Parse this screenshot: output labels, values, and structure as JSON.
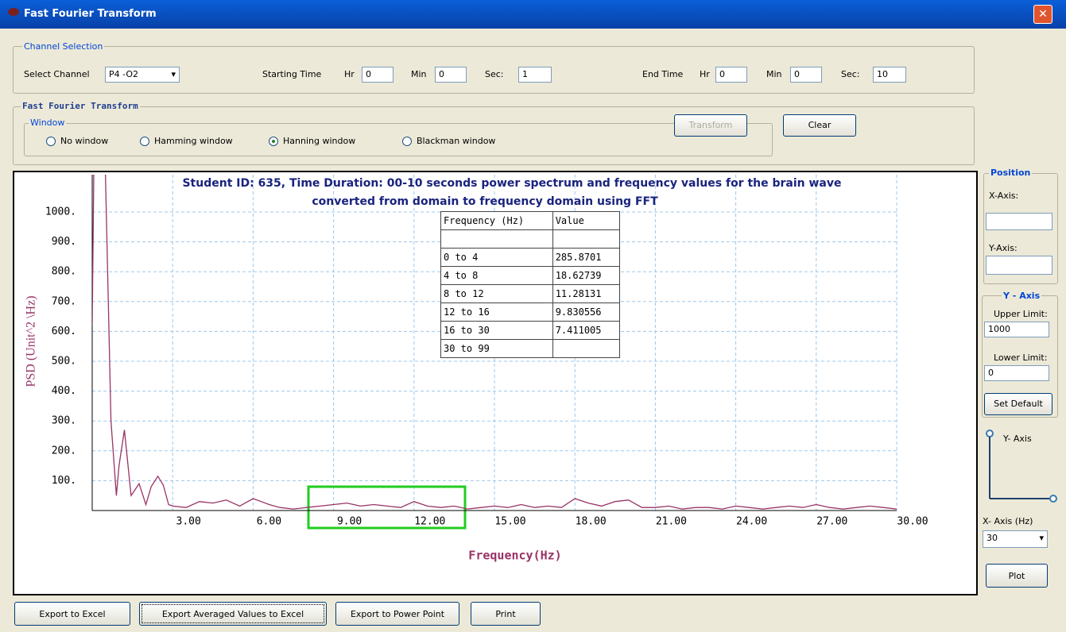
{
  "window": {
    "title": "Fast Fourier Transform"
  },
  "channel_selection": {
    "legend": "Channel Selection",
    "select_label": "Select Channel",
    "channel": "P4 -O2",
    "start": {
      "label": "Starting Time",
      "hr_label": "Hr",
      "hr": 0,
      "min_label": "Min",
      "min": 0,
      "sec_label": "Sec:",
      "sec": 1
    },
    "end": {
      "label": "End Time",
      "hr_label": "Hr",
      "hr": 0,
      "min_label": "Min",
      "min": 0,
      "sec_label": "Sec:",
      "sec": 10
    }
  },
  "fft": {
    "legend": "Fast Fourier Transform",
    "window_legend": "Window",
    "windows": [
      {
        "label": "No window",
        "checked": false
      },
      {
        "label": "Hamming window",
        "checked": false
      },
      {
        "label": "Hanning window",
        "checked": true
      },
      {
        "label": "Blackman window",
        "checked": false
      }
    ],
    "transform": {
      "label": "Transform",
      "disabled": true
    },
    "clear": "Clear"
  },
  "chart_data": {
    "type": "line",
    "title": [
      "Student ID: 635, Time Duration: 00-10 seconds power spectrum and frequency values for the brain wave",
      "converted from domain to frequency domain using FFT"
    ],
    "x_label": "Frequency(Hz)",
    "y_label": "PSD  (Unit^2 \\Hz)",
    "color": "#993366",
    "grid": true,
    "x": [
      0,
      0.1,
      0.4,
      0.7,
      0.9,
      1.0,
      1.2,
      1.45,
      1.75,
      2.0,
      2.2,
      2.45,
      2.65,
      2.85,
      3.0,
      3.5,
      4.0,
      4.5,
      5.0,
      5.5,
      6.0,
      6.3,
      6.6,
      7.0,
      7.5,
      8.0,
      8.5,
      9.0,
      9.5,
      10,
      10.5,
      11,
      11.5,
      12,
      12.5,
      13,
      13.5,
      14,
      14.5,
      15,
      15.5,
      16,
      16.5,
      17,
      17.5,
      18,
      18.5,
      19,
      19.5,
      20,
      20.5,
      21,
      21.5,
      22,
      22.5,
      23,
      23.5,
      24,
      24.5,
      25,
      25.5,
      26,
      26.5,
      27,
      27.5,
      28,
      28.5,
      29,
      29.5,
      30
    ],
    "values": [
      620,
      1500,
      1500,
      300,
      50,
      150,
      270,
      50,
      90,
      20,
      80,
      115,
      85,
      20,
      15,
      10,
      30,
      25,
      35,
      15,
      40,
      30,
      20,
      10,
      5,
      10,
      15,
      20,
      25,
      15,
      20,
      15,
      10,
      30,
      15,
      10,
      15,
      5,
      10,
      15,
      10,
      20,
      10,
      15,
      10,
      40,
      25,
      15,
      30,
      35,
      10,
      10,
      15,
      5,
      10,
      10,
      5,
      15,
      10,
      5,
      10,
      15,
      10,
      20,
      10,
      5,
      10,
      15,
      10,
      5
    ],
    "xlim": [
      0,
      30
    ],
    "ylim": [
      0,
      1125
    ],
    "xticks": [
      {
        "value": 3,
        "label": "3.00"
      },
      {
        "value": 6,
        "label": "6.00"
      },
      {
        "value": 9,
        "label": "9.00"
      },
      {
        "value": 12,
        "label": "12.00"
      },
      {
        "value": 15,
        "label": "15.00"
      },
      {
        "value": 18,
        "label": "18.00"
      },
      {
        "value": 21,
        "label": "21.00"
      },
      {
        "value": 24,
        "label": "24.00"
      },
      {
        "value": 27,
        "label": "27.00"
      },
      {
        "value": 30,
        "label": "30.00"
      }
    ],
    "yticks": [
      {
        "value": 100,
        "label": "100."
      },
      {
        "value": 200,
        "label": "200."
      },
      {
        "value": 300,
        "label": "300."
      },
      {
        "value": 400,
        "label": "400."
      },
      {
        "value": 500,
        "label": "500."
      },
      {
        "value": 600,
        "label": "600."
      },
      {
        "value": 700,
        "label": "700."
      },
      {
        "value": 800,
        "label": "800."
      },
      {
        "value": 900,
        "label": "900."
      },
      {
        "value": 1000,
        "label": "1000."
      }
    ]
  },
  "band_table": {
    "header": [
      "Frequency (Hz)",
      "Value"
    ],
    "rows": [
      {
        "range": "0 to 4",
        "value": 285.8701
      },
      {
        "range": "4 to 8",
        "value": 18.62739
      },
      {
        "range": "8 to 12",
        "value": 11.28131
      },
      {
        "range": "12 to 16",
        "value": 9.830556
      },
      {
        "range": "16 to 30",
        "value": 7.411005
      },
      {
        "range": "30 to 99"
      }
    ]
  },
  "position": {
    "legend": "Position",
    "x_label": "X-Axis:",
    "y_label": "Y-Axis:"
  },
  "y_axis_panel": {
    "legend": "Y - Axis",
    "upper_label": "Upper Limit:",
    "upper": 1000,
    "lower_label": "Lower Limit:",
    "lower": 0,
    "set_default": "Set Default",
    "icon_label": "Y- Axis",
    "x_axis_label": "X- Axis (Hz)",
    "x_axis_value": 30,
    "plot": "Plot"
  },
  "footer": {
    "buttons": [
      "Export to Excel",
      "Export Averaged Values to Excel",
      "Export to Power Point",
      "Print"
    ]
  }
}
